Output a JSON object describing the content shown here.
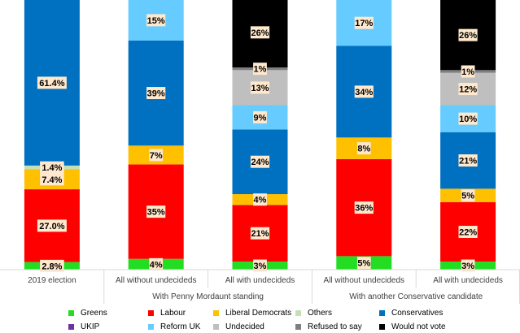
{
  "chart_data": {
    "type": "bar",
    "stacked": true,
    "title": "",
    "xlabel": "",
    "ylabel": "",
    "ylim": [
      0,
      100
    ],
    "categories": [
      "2019 election",
      "All without undecideds",
      "All with undecideds",
      "All without undecideds",
      "All with undecideds"
    ],
    "category_groups": [
      {
        "label": "With Penny Mordaunt standing",
        "categories": [
          1,
          2
        ]
      },
      {
        "label": "With another Conservative candidate",
        "categories": [
          3,
          4
        ]
      }
    ],
    "series": [
      {
        "name": "Greens",
        "color": "#22dd22",
        "values": [
          2.8,
          4,
          3,
          5,
          3
        ],
        "labels": [
          "2.8%",
          "4%",
          "3%",
          "5%",
          "3%"
        ]
      },
      {
        "name": "Labour",
        "color": "#ff0000",
        "values": [
          27.0,
          35,
          21,
          36,
          22
        ],
        "labels": [
          "27.0%",
          "35%",
          "21%",
          "36%",
          "22%"
        ]
      },
      {
        "name": "Liberal Democrats",
        "color": "#ffc000",
        "values": [
          7.4,
          7,
          4,
          8,
          5
        ],
        "labels": [
          "7.4%",
          "7%",
          "4%",
          "8%",
          "5%"
        ]
      },
      {
        "name": "Others",
        "color": "#c5e0b4",
        "values": [
          1.4,
          0,
          0,
          0,
          0
        ],
        "labels": [
          "1.4%",
          "",
          "",
          "",
          ""
        ]
      },
      {
        "name": "Conservatives",
        "color": "#0070c0",
        "values": [
          61.4,
          39,
          24,
          34,
          21
        ],
        "labels": [
          "61.4%",
          "39%",
          "24%",
          "34%",
          "21%"
        ]
      },
      {
        "name": "UKIP",
        "color": "#7030a0",
        "values": [
          0,
          0,
          0,
          0,
          0
        ],
        "labels": [
          "",
          "",
          "",
          "",
          ""
        ]
      },
      {
        "name": "Reform UK",
        "color": "#66ccff",
        "values": [
          0,
          15,
          9,
          17,
          10
        ],
        "labels": [
          "",
          "15%",
          "9%",
          "17%",
          "10%"
        ]
      },
      {
        "name": "Undecided",
        "color": "#bfbfbf",
        "values": [
          0,
          0,
          13,
          0,
          12
        ],
        "labels": [
          "",
          "",
          "13%",
          "",
          "12%"
        ]
      },
      {
        "name": "Refused to say",
        "color": "#7f7f7f",
        "values": [
          0,
          0,
          1,
          0,
          1
        ],
        "labels": [
          "",
          "",
          "1%",
          "",
          "1%"
        ]
      },
      {
        "name": "Would not vote",
        "color": "#000000",
        "values": [
          0,
          0,
          26,
          0,
          26
        ],
        "labels": [
          "",
          "",
          "26%",
          "",
          "26%"
        ]
      }
    ],
    "legend_position": "bottom",
    "grid": false
  }
}
